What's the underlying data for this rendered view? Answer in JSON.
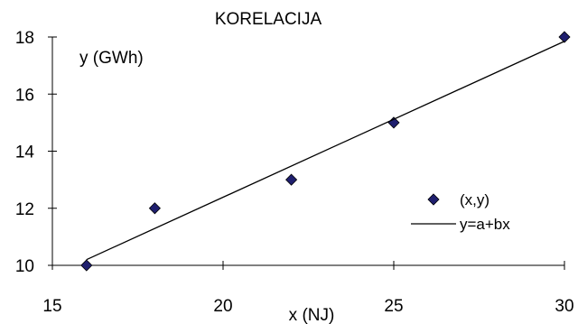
{
  "chart_data": {
    "type": "scatter",
    "title": "KORELACIJA",
    "xlabel": "x  (NJ)",
    "ylabel": "y  (GWh)",
    "xlim": [
      15,
      30
    ],
    "ylim": [
      10,
      18
    ],
    "x_ticks": [
      15,
      20,
      25,
      30
    ],
    "y_ticks": [
      10,
      12,
      14,
      16,
      18
    ],
    "grid": false,
    "legend_position": "right",
    "series": [
      {
        "name": "(x,y)",
        "type": "scatter",
        "marker": "diamond",
        "color": "#1f1f6e",
        "x": [
          16,
          18,
          22,
          25,
          30
        ],
        "y": [
          10,
          12,
          13,
          15,
          18
        ]
      },
      {
        "name": "y=a+bx",
        "type": "line",
        "color": "#000000",
        "x": [
          16,
          30
        ],
        "y": [
          10.2,
          17.85
        ]
      }
    ]
  }
}
